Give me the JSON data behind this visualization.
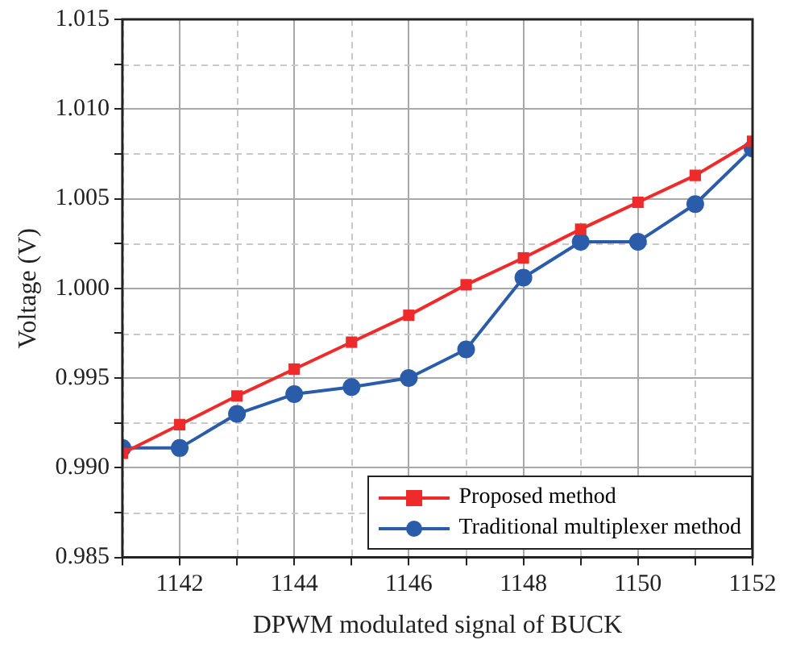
{
  "chart_data": {
    "type": "line",
    "xlabel": "DPWM modulated signal of BUCK",
    "ylabel": "Voltage (V)",
    "x": [
      1141,
      1142,
      1143,
      1144,
      1145,
      1146,
      1147,
      1148,
      1149,
      1150,
      1151,
      1152
    ],
    "series": [
      {
        "name": "Proposed method",
        "color": "#ee2a2a",
        "marker": "square",
        "values": [
          0.9908,
          0.9924,
          0.994,
          0.9955,
          0.997,
          0.9985,
          1.0002,
          1.0017,
          1.0033,
          1.0048,
          1.0063,
          1.0082
        ]
      },
      {
        "name": "Traditional multiplexer method",
        "color": "#2a5caa",
        "marker": "circle",
        "values": [
          0.9911,
          0.9911,
          0.993,
          0.9941,
          0.9945,
          0.995,
          0.9966,
          1.0006,
          1.0026,
          1.0026,
          1.0047,
          1.0078
        ]
      }
    ],
    "xlim": [
      1141,
      1152
    ],
    "xticks": [
      {
        "value": 1141,
        "label": null
      },
      1142,
      {
        "value": 1143,
        "label": null
      },
      1144,
      {
        "value": 1145,
        "label": null
      },
      1146,
      {
        "value": 1147,
        "label": null
      },
      1148,
      {
        "value": 1149,
        "label": null
      },
      1150,
      {
        "value": 1151,
        "label": null
      },
      1152
    ],
    "ylim": [
      0.985,
      1.015
    ],
    "yticks": [
      {
        "value": 0.985,
        "label": "0.985"
      },
      {
        "value": 0.9875,
        "label": null
      },
      {
        "value": 0.99,
        "label": "0.990"
      },
      {
        "value": 0.9925,
        "label": null
      },
      {
        "value": 0.995,
        "label": "0.995"
      },
      {
        "value": 0.9975,
        "label": null
      },
      {
        "value": 1,
        "label": "1.000"
      },
      {
        "value": 1.0025,
        "label": null
      },
      {
        "value": 1.005,
        "label": "1.005"
      },
      {
        "value": 1.0075,
        "label": null
      },
      {
        "value": 1.01,
        "label": "1.010"
      },
      {
        "value": 1.0125,
        "label": null
      },
      {
        "value": 1.015,
        "label": "1.015"
      }
    ],
    "grid": true,
    "legend": "bottom right",
    "line_style": "solid"
  }
}
